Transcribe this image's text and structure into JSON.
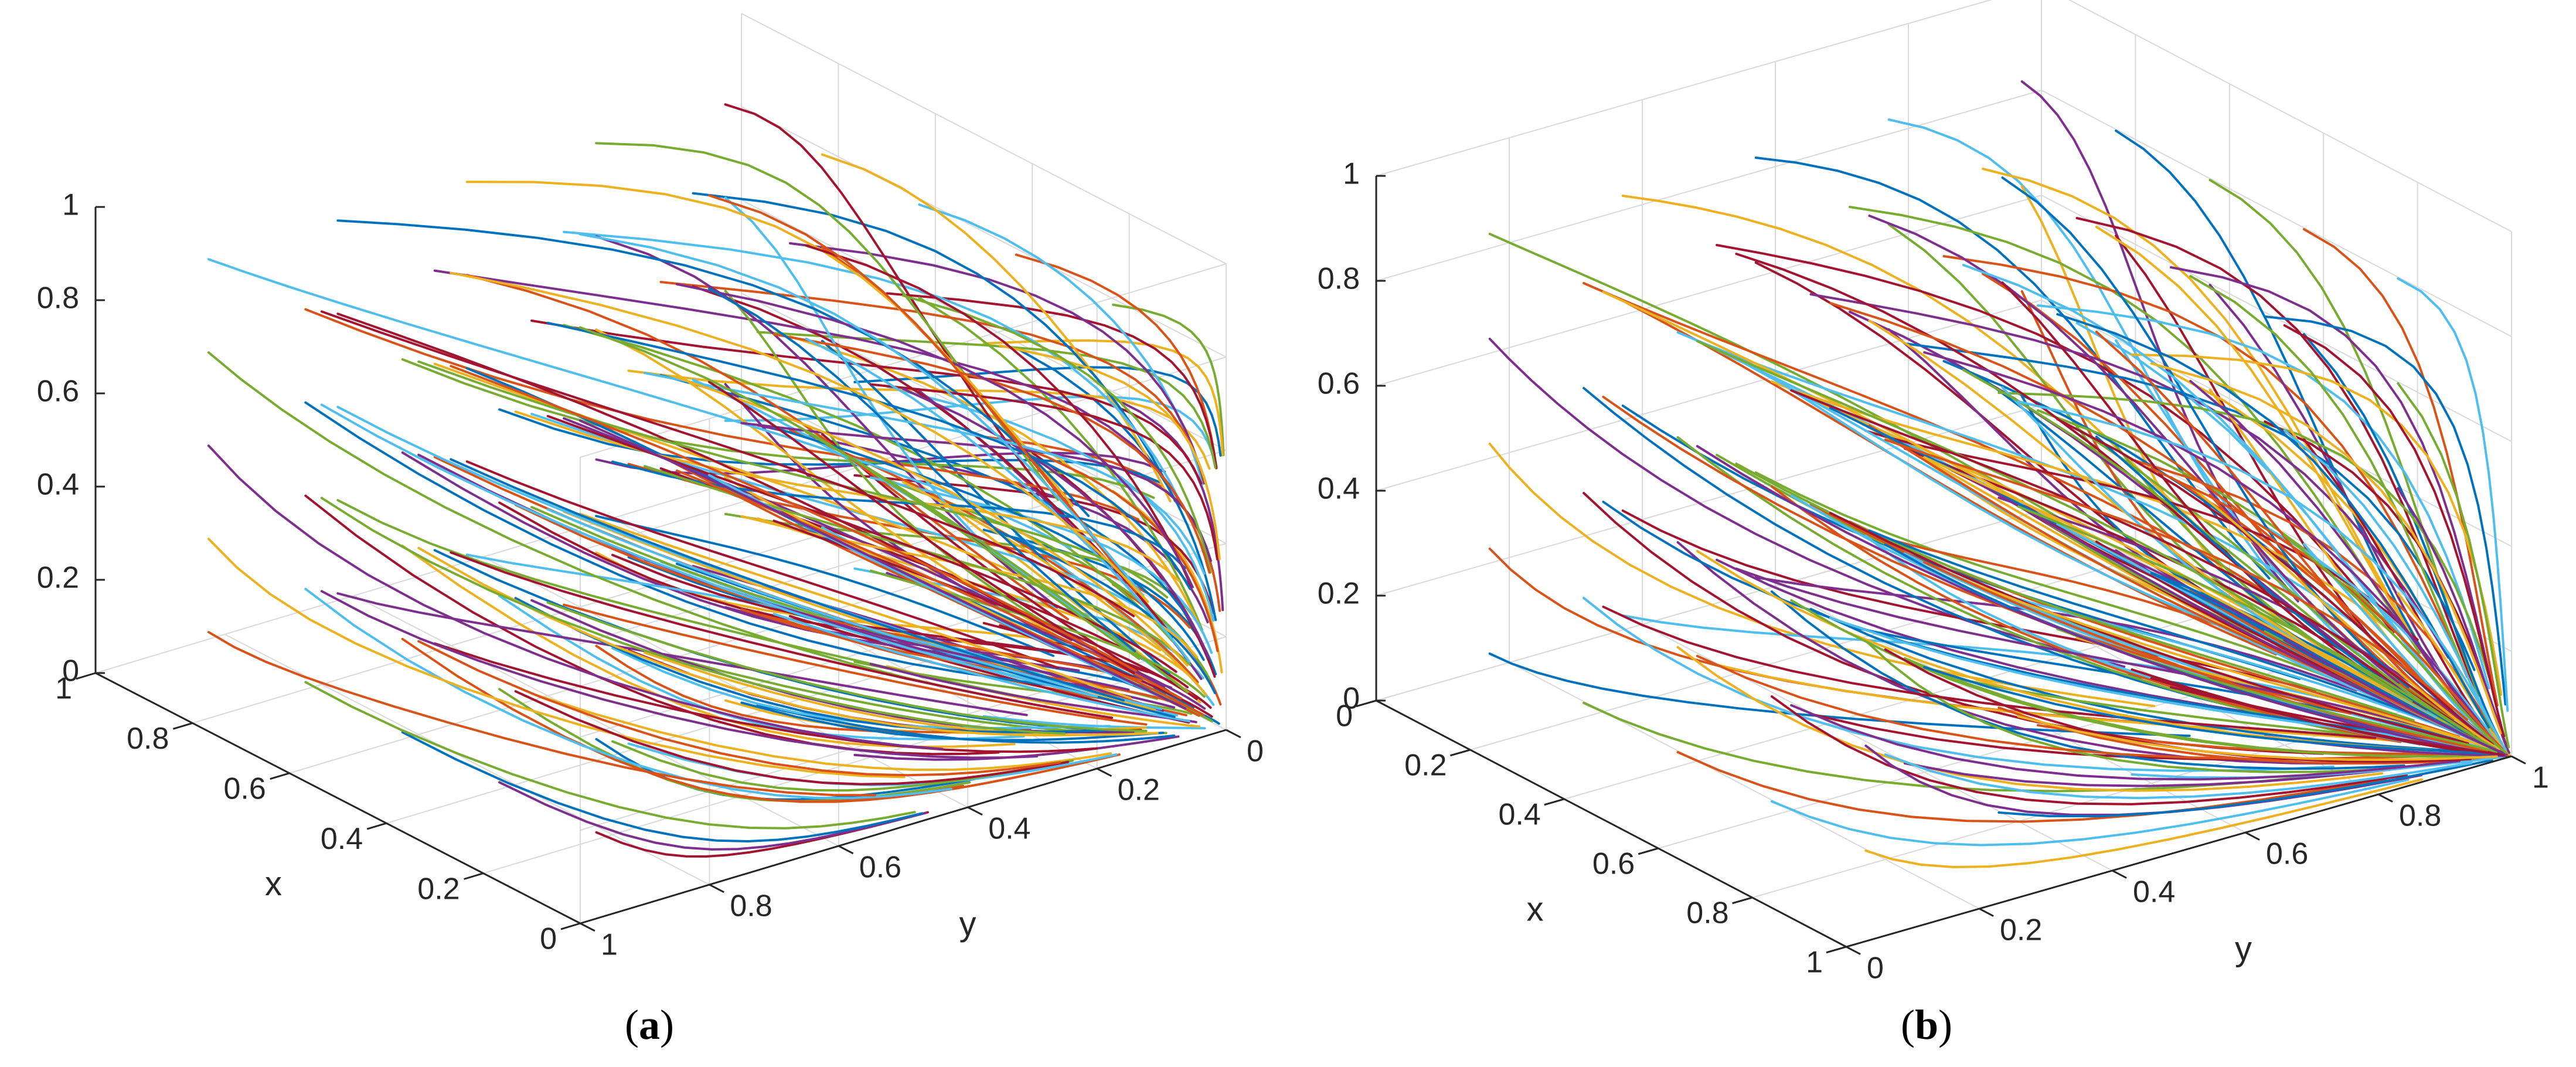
{
  "figure": {
    "captions": [
      "(a)",
      "(b)"
    ],
    "caption_letters": [
      "a",
      "b"
    ]
  },
  "chart_data": [
    {
      "panel": "a",
      "type": "3d-trajectories",
      "title": "",
      "xlabel": "x",
      "ylabel": "y",
      "zlabel": "",
      "xlim": [
        0,
        1
      ],
      "ylim": [
        0,
        1
      ],
      "zlim": [
        0,
        1
      ],
      "x_ticks": [
        "0",
        "0.2",
        "0.4",
        "0.6",
        "0.8",
        "1"
      ],
      "y_ticks": [
        "0",
        "0.2",
        "0.4",
        "0.6",
        "0.8",
        "1"
      ],
      "z_ticks": [
        "0",
        "0.2",
        "0.4",
        "0.6",
        "0.8",
        "1"
      ],
      "grid": true,
      "view": "x and y decrease toward the viewer",
      "line_colors": [
        "#0072BD",
        "#D95319",
        "#EDB120",
        "#7E2F8E",
        "#77AC30",
        "#4DBEEE",
        "#A2142F"
      ],
      "trajectories": {
        "grid_starts": [
          0.1,
          0.3,
          0.5,
          0.7,
          0.9
        ],
        "flow": "x falls, y falls, z falls; segments drawn as short streamline pieces"
      }
    },
    {
      "panel": "b",
      "type": "3d-trajectories",
      "title": "",
      "xlabel": "x",
      "ylabel": "y",
      "zlabel": "",
      "xlim": [
        0,
        1
      ],
      "ylim": [
        0,
        1
      ],
      "zlim": [
        0,
        1
      ],
      "x_ticks": [
        "0",
        "0.2",
        "0.4",
        "0.6",
        "0.8",
        "1"
      ],
      "y_ticks": [
        "0",
        "0.2",
        "0.4",
        "0.6",
        "0.8",
        "1"
      ],
      "z_ticks": [
        "0",
        "0.2",
        "0.4",
        "0.6",
        "0.8",
        "1"
      ],
      "grid": true,
      "view": "x and y increase toward the viewer",
      "line_colors": [
        "#0072BD",
        "#D95319",
        "#EDB120",
        "#7E2F8E",
        "#77AC30",
        "#4DBEEE",
        "#A2142F"
      ],
      "trajectories": {
        "grid_starts": [
          0.1,
          0.3,
          0.5,
          0.7,
          0.9
        ],
        "flow": "x rises, y rises, z falls; segments drawn as short streamline pieces"
      }
    }
  ]
}
